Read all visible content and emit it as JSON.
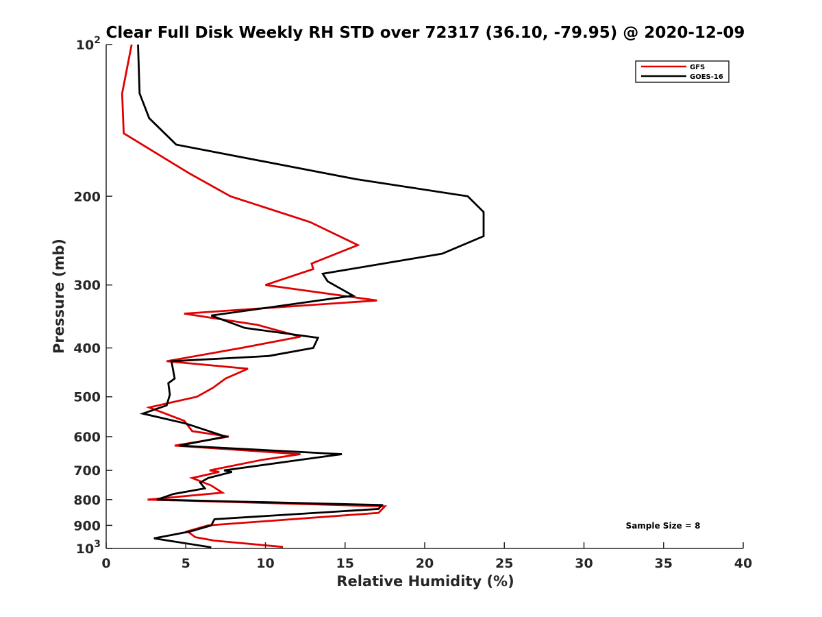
{
  "chart_data": {
    "type": "line",
    "title": "Clear Full Disk Weekly RH STD over 72317 (36.10, -79.95) @ 2020-12-09",
    "xlabel": "Relative Humidity (%)",
    "ylabel": "Pressure (mb)",
    "xlim": [
      0,
      40
    ],
    "ylim": [
      100,
      1000
    ],
    "y_scale": "log",
    "y_reversed": true,
    "x_ticks": [
      0,
      5,
      10,
      15,
      20,
      25,
      30,
      35,
      40
    ],
    "x_tick_labels": [
      "0",
      "5",
      "10",
      "15",
      "20",
      "25",
      "30",
      "35",
      "40"
    ],
    "y_ticks": [
      100,
      200,
      300,
      400,
      500,
      600,
      700,
      800,
      900,
      1000
    ],
    "y_tick_labels": [
      {
        "base": "10",
        "exp": "2"
      },
      {
        "base": "200",
        "exp": ""
      },
      {
        "base": "300",
        "exp": ""
      },
      {
        "base": "400",
        "exp": ""
      },
      {
        "base": "500",
        "exp": ""
      },
      {
        "base": "600",
        "exp": ""
      },
      {
        "base": "700",
        "exp": ""
      },
      {
        "base": "800",
        "exp": ""
      },
      {
        "base": "900",
        "exp": ""
      },
      {
        "base": "10",
        "exp": "3"
      }
    ],
    "legend_position": "top-right",
    "grid": false,
    "annotation": "Sample Size = 8",
    "series": [
      {
        "name": "GFS",
        "color": "#e00000",
        "points": [
          [
            1.6,
            100
          ],
          [
            1.0,
            125
          ],
          [
            1.1,
            150
          ],
          [
            5.2,
            180
          ],
          [
            7.8,
            200
          ],
          [
            12.8,
            225
          ],
          [
            15.8,
            250
          ],
          [
            12.9,
            272
          ],
          [
            13.0,
            279
          ],
          [
            10.0,
            300
          ],
          [
            17.0,
            322
          ],
          [
            4.9,
            342
          ],
          [
            9.5,
            360
          ],
          [
            12.2,
            380
          ],
          [
            8.5,
            400
          ],
          [
            3.8,
            425
          ],
          [
            8.9,
            440
          ],
          [
            7.5,
            460
          ],
          [
            6.7,
            480
          ],
          [
            5.7,
            500
          ],
          [
            2.7,
            525
          ],
          [
            4.9,
            558
          ],
          [
            5.4,
            585
          ],
          [
            7.7,
            600
          ],
          [
            4.3,
            625
          ],
          [
            12.2,
            650
          ],
          [
            9.8,
            667
          ],
          [
            6.5,
            700
          ],
          [
            7.1,
            705
          ],
          [
            5.4,
            725
          ],
          [
            6.6,
            750
          ],
          [
            7.3,
            775
          ],
          [
            2.6,
            800
          ],
          [
            17.5,
            825
          ],
          [
            17.1,
            850
          ],
          [
            6.4,
            900
          ],
          [
            5.1,
            925
          ],
          [
            5.6,
            950
          ],
          [
            6.8,
            965
          ],
          [
            11.1,
            993
          ]
        ]
      },
      {
        "name": "GOES-16",
        "color": "#000000",
        "points": [
          [
            2.0,
            100
          ],
          [
            2.1,
            125
          ],
          [
            2.7,
            140
          ],
          [
            4.4,
            158
          ],
          [
            15.7,
            185
          ],
          [
            22.7,
            200
          ],
          [
            23.7,
            215
          ],
          [
            23.7,
            240
          ],
          [
            21.1,
            260
          ],
          [
            13.6,
            285
          ],
          [
            13.9,
            295
          ],
          [
            15.5,
            315
          ],
          [
            6.6,
            345
          ],
          [
            8.7,
            365
          ],
          [
            13.3,
            382
          ],
          [
            13.0,
            400
          ],
          [
            10.2,
            415
          ],
          [
            4.1,
            425
          ],
          [
            4.3,
            460
          ],
          [
            3.9,
            470
          ],
          [
            4.0,
            495
          ],
          [
            3.8,
            520
          ],
          [
            2.3,
            540
          ],
          [
            5.0,
            565
          ],
          [
            7.5,
            600
          ],
          [
            4.6,
            625
          ],
          [
            14.8,
            650
          ],
          [
            12.5,
            665
          ],
          [
            7.4,
            700
          ],
          [
            7.9,
            705
          ],
          [
            6.4,
            725
          ],
          [
            5.9,
            740
          ],
          [
            6.2,
            760
          ],
          [
            4.2,
            780
          ],
          [
            3.2,
            800
          ],
          [
            17.3,
            820
          ],
          [
            17.1,
            835
          ],
          [
            6.8,
            875
          ],
          [
            6.6,
            900
          ],
          [
            5.3,
            925
          ],
          [
            3.0,
            955
          ],
          [
            6.6,
            995
          ]
        ]
      }
    ]
  }
}
